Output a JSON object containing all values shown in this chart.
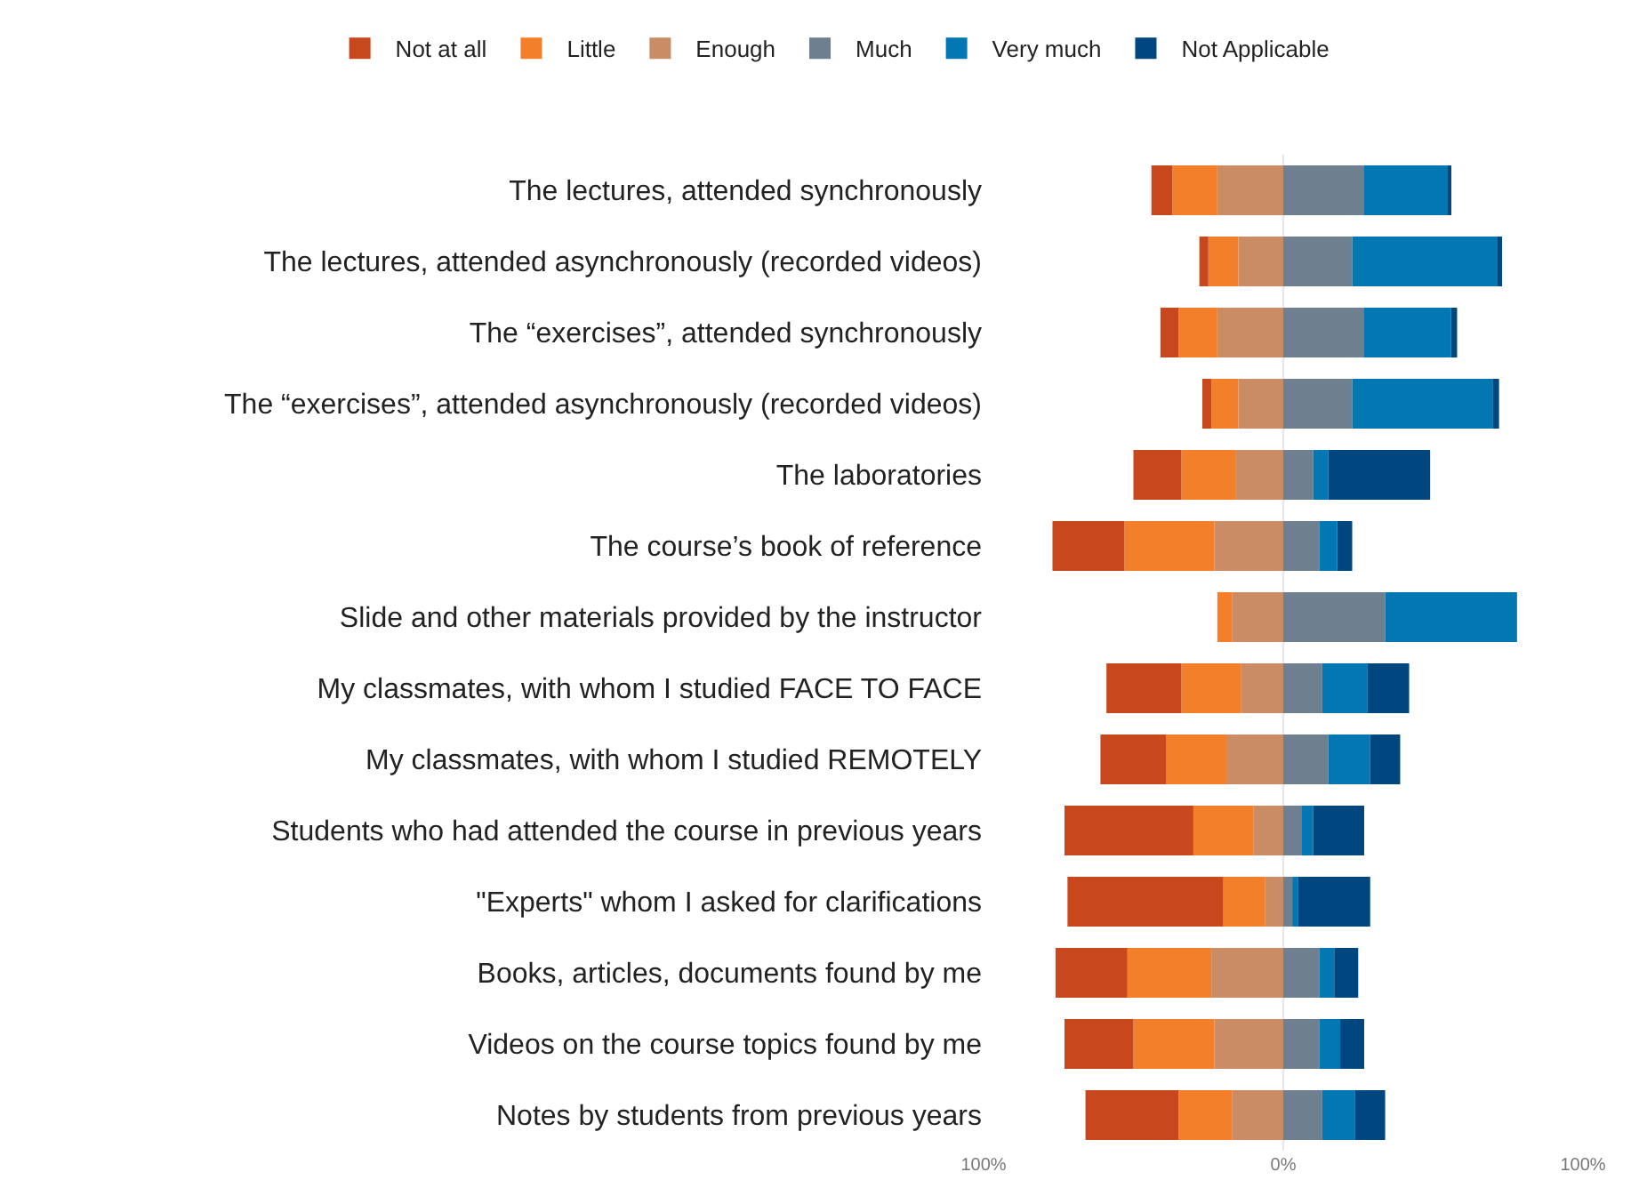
{
  "chart_data": {
    "type": "bar",
    "orientation": "horizontal",
    "stacked": true,
    "grid": "x",
    "legend": "top left",
    "categories": [
      "The lectures, attended synchronously",
      "The lectures, attended asynchronously (recorded videos)",
      "The “exercises”, attended synchronously",
      "The “exercises”, attended asynchronously (recorded videos)",
      "The laboratories",
      "The course’s book of reference",
      "Slide and other materials provided by the instructor",
      "My classmates, with whom I studied FACE TO FACE",
      "My classmates, with whom I studied REMOTELY",
      "Students who had attended the course in previous years",
      "\"Experts\" whom I asked for clarifications",
      "Books, articles, documents found by me",
      "Videos on the course topics found by me",
      "Notes by students from previous years"
    ],
    "xlim": [
      -100,
      100
    ],
    "xticks": [
      {
        "value": -100,
        "label": "100%"
      },
      {
        "value": 0,
        "label": "0%"
      },
      {
        "value": 100,
        "label": "100%"
      }
    ],
    "series": [
      {
        "name": "Not at all",
        "color": "#c8471d",
        "values": [
          -7,
          -3,
          -6,
          -3,
          -16,
          -24,
          0,
          -25,
          -22,
          -43,
          -52,
          -24,
          -23,
          -31
        ]
      },
      {
        "name": "Little",
        "color": "#f47f2a",
        "values": [
          -15,
          -10,
          -13,
          -9,
          -18,
          -30,
          -5,
          -20,
          -20,
          -20,
          -14,
          -28,
          -27,
          -18
        ]
      },
      {
        "name": "Enough",
        "color": "#c98c64",
        "values": [
          -22,
          -15,
          -22,
          -15,
          -16,
          -23,
          -17,
          -14,
          -19,
          -10,
          -6,
          -24,
          -23,
          -17
        ]
      },
      {
        "name": "Much",
        "color": "#6e7f8f",
        "values": [
          27,
          23,
          27,
          23,
          10,
          12,
          34,
          13,
          15,
          6,
          3,
          12,
          12,
          13
        ]
      },
      {
        "name": "Very much",
        "color": "#0277b2",
        "values": [
          28,
          49,
          29,
          47,
          5,
          6,
          44,
          15,
          14,
          4,
          2,
          5,
          7,
          11
        ]
      },
      {
        "name": "Not Applicable",
        "color": "#00467f",
        "values": [
          1,
          1,
          2,
          2,
          34,
          5,
          0,
          14,
          10,
          17,
          24,
          8,
          8,
          10
        ]
      }
    ]
  }
}
